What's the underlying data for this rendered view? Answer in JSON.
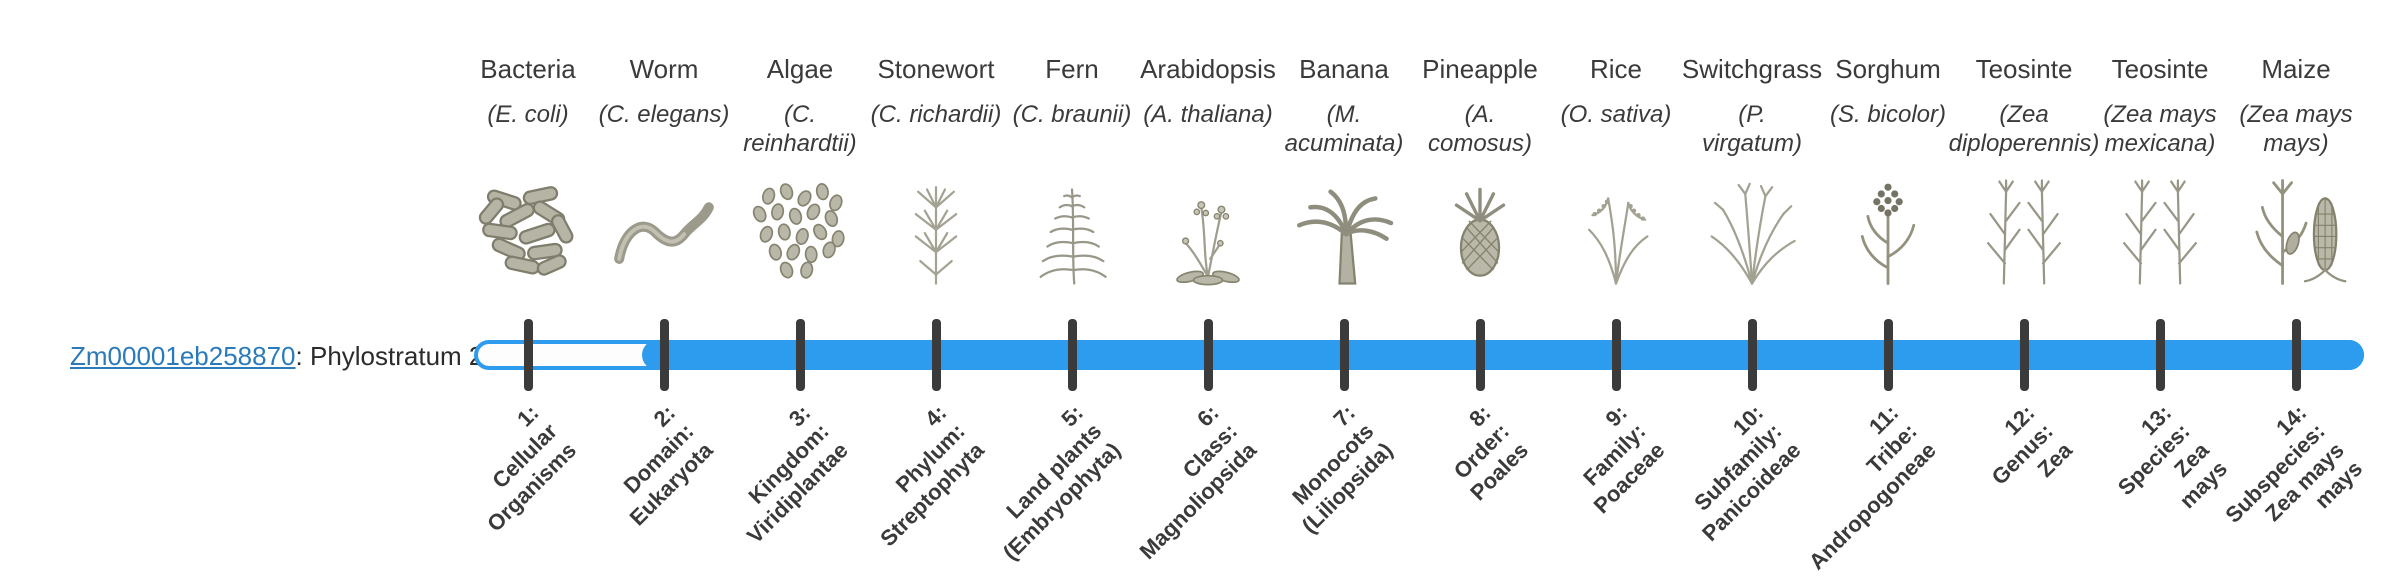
{
  "gene": {
    "id": "Zm00001eb258870",
    "label_suffix": ": Phylostratum 2",
    "phylostratum": 2
  },
  "timeline": {
    "bar_color": "#2d9cee",
    "tick_color": "#3b3b3b",
    "link_color": "#2b7bba",
    "fill_start_stratum": 2
  },
  "organisms": [
    {
      "name": "Bacteria",
      "sci_lines": [
        "(E. coli)"
      ],
      "icon": "bacteria-icon"
    },
    {
      "name": "Worm",
      "sci_lines": [
        "(C. elegans)"
      ],
      "icon": "worm-icon"
    },
    {
      "name": "Algae",
      "sci_lines": [
        "(C.",
        "reinhardtii)"
      ],
      "icon": "algae-icon"
    },
    {
      "name": "Stonewort",
      "sci_lines": [
        "(C. richardii)"
      ],
      "icon": "stonewort-icon"
    },
    {
      "name": "Fern",
      "sci_lines": [
        "(C. braunii)"
      ],
      "icon": "fern-icon"
    },
    {
      "name": "Arabidopsis",
      "sci_lines": [
        "(A. thaliana)"
      ],
      "icon": "arabidopsis-icon"
    },
    {
      "name": "Banana",
      "sci_lines": [
        "(M.",
        "acuminata)"
      ],
      "icon": "banana-icon"
    },
    {
      "name": "Pineapple",
      "sci_lines": [
        "(A.",
        "comosus)"
      ],
      "icon": "pineapple-icon"
    },
    {
      "name": "Rice",
      "sci_lines": [
        "(O. sativa)"
      ],
      "icon": "rice-icon"
    },
    {
      "name": "Switchgrass",
      "sci_lines": [
        "(P.",
        "virgatum)"
      ],
      "icon": "switchgrass-icon"
    },
    {
      "name": "Sorghum",
      "sci_lines": [
        "(S. bicolor)"
      ],
      "icon": "sorghum-icon"
    },
    {
      "name": "Teosinte",
      "sci_lines": [
        "(Zea",
        "diploperennis)"
      ],
      "icon": "teosinte-icon"
    },
    {
      "name": "Teosinte",
      "sci_lines": [
        "(Zea mays",
        "mexicana)"
      ],
      "icon": "teosinte-icon"
    },
    {
      "name": "Maize",
      "sci_lines": [
        "(Zea mays",
        "mays)"
      ],
      "icon": "maize-icon"
    }
  ],
  "strata": [
    {
      "num": "1:",
      "lines": [
        "Cellular",
        "Organisms"
      ]
    },
    {
      "num": "2:",
      "lines": [
        "Domain:",
        "Eukaryota"
      ]
    },
    {
      "num": "3:",
      "lines": [
        "Kingdom:",
        "Viridiplantae"
      ]
    },
    {
      "num": "4:",
      "lines": [
        "Phylum:",
        "Streptophyta"
      ]
    },
    {
      "num": "5:",
      "lines": [
        "Land plants",
        "(Embryophyta)"
      ]
    },
    {
      "num": "6:",
      "lines": [
        "Class:",
        "Magnoliopsida"
      ]
    },
    {
      "num": "7:",
      "lines": [
        "Monocots",
        "(Liliopsida)"
      ]
    },
    {
      "num": "8:",
      "lines": [
        "Order:",
        "Poales"
      ]
    },
    {
      "num": "9:",
      "lines": [
        "Family:",
        "Poaceae"
      ]
    },
    {
      "num": "10:",
      "lines": [
        "Subfamily:",
        "Panicoideae"
      ]
    },
    {
      "num": "11:",
      "lines": [
        "Tribe:",
        "Andropogoneae"
      ]
    },
    {
      "num": "12:",
      "lines": [
        "Genus:",
        "Zea"
      ]
    },
    {
      "num": "13:",
      "lines": [
        "Species:",
        "Zea",
        "mays"
      ]
    },
    {
      "num": "14:",
      "lines": [
        "Subspecies:",
        "Zea mays",
        "mays"
      ]
    }
  ]
}
